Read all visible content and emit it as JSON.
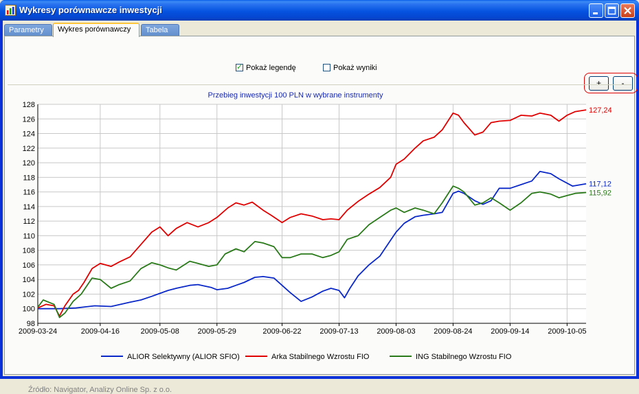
{
  "window": {
    "title": "Wykresy porównawcze inwestycji"
  },
  "tabs": [
    {
      "label": "Parametry"
    },
    {
      "label": "Wykres porównawczy"
    },
    {
      "label": "Tabela"
    }
  ],
  "options": {
    "show_legend_label": "Pokaż legendę",
    "show_legend_checked": true,
    "show_results_label": "Pokaż wyniki",
    "show_results_checked": false
  },
  "zoom": {
    "in_label": "+",
    "out_label": "-"
  },
  "source_text": "Źródło: Navigator, Analizy Online Sp. z o.o.",
  "colors": {
    "alior": "#0a28c8",
    "arka": "#e00000",
    "ing": "#2a7a1a",
    "title": "#1a2ab0"
  },
  "chart_data": {
    "type": "line",
    "title": "Przebieg inwestycji 100 PLN w wybrane instrumenty",
    "x_start": "2009-03-24",
    "x_end": "2009-10-12",
    "x_ticks": [
      "2009-03-24",
      "2009-04-16",
      "2009-05-08",
      "2009-05-29",
      "2009-06-22",
      "2009-07-13",
      "2009-08-03",
      "2009-08-24",
      "2009-09-14",
      "2009-10-05"
    ],
    "ylim": [
      98,
      128
    ],
    "y_ticks": [
      98,
      100,
      102,
      104,
      106,
      108,
      110,
      112,
      114,
      116,
      118,
      120,
      122,
      124,
      126,
      128
    ],
    "grid": true,
    "legend_position": "bottom",
    "series": [
      {
        "name": "ALIOR Selektywny (ALIOR SFIO)",
        "color": "#0a28c8",
        "end_label": "117,12",
        "points": [
          [
            "2009-03-24",
            100.0
          ],
          [
            "2009-03-27",
            100.0
          ],
          [
            "2009-04-01",
            100.0
          ],
          [
            "2009-04-07",
            100.1
          ],
          [
            "2009-04-14",
            100.4
          ],
          [
            "2009-04-20",
            100.3
          ],
          [
            "2009-04-27",
            100.9
          ],
          [
            "2009-05-01",
            101.2
          ],
          [
            "2009-05-05",
            101.7
          ],
          [
            "2009-05-08",
            102.1
          ],
          [
            "2009-05-11",
            102.5
          ],
          [
            "2009-05-14",
            102.8
          ],
          [
            "2009-05-19",
            103.2
          ],
          [
            "2009-05-22",
            103.3
          ],
          [
            "2009-05-27",
            102.9
          ],
          [
            "2009-05-29",
            102.6
          ],
          [
            "2009-06-02",
            102.8
          ],
          [
            "2009-06-05",
            103.2
          ],
          [
            "2009-06-08",
            103.6
          ],
          [
            "2009-06-12",
            104.3
          ],
          [
            "2009-06-15",
            104.4
          ],
          [
            "2009-06-19",
            104.2
          ],
          [
            "2009-06-22",
            103.2
          ],
          [
            "2009-06-25",
            102.2
          ],
          [
            "2009-06-29",
            101.0
          ],
          [
            "2009-07-03",
            101.6
          ],
          [
            "2009-07-07",
            102.4
          ],
          [
            "2009-07-10",
            102.8
          ],
          [
            "2009-07-13",
            102.5
          ],
          [
            "2009-07-15",
            101.5
          ],
          [
            "2009-07-17",
            102.8
          ],
          [
            "2009-07-20",
            104.5
          ],
          [
            "2009-07-24",
            106.0
          ],
          [
            "2009-07-28",
            107.2
          ],
          [
            "2009-08-01",
            109.4
          ],
          [
            "2009-08-03",
            110.5
          ],
          [
            "2009-08-06",
            111.7
          ],
          [
            "2009-08-10",
            112.6
          ],
          [
            "2009-08-13",
            112.8
          ],
          [
            "2009-08-17",
            113.0
          ],
          [
            "2009-08-20",
            113.2
          ],
          [
            "2009-08-24",
            115.8
          ],
          [
            "2009-08-26",
            116.1
          ],
          [
            "2009-08-28",
            115.8
          ],
          [
            "2009-09-01",
            114.8
          ],
          [
            "2009-09-04",
            114.3
          ],
          [
            "2009-09-07",
            114.8
          ],
          [
            "2009-09-10",
            116.5
          ],
          [
            "2009-09-14",
            116.5
          ],
          [
            "2009-09-18",
            117.0
          ],
          [
            "2009-09-22",
            117.5
          ],
          [
            "2009-09-25",
            118.8
          ],
          [
            "2009-09-29",
            118.5
          ],
          [
            "2009-10-02",
            117.8
          ],
          [
            "2009-10-05",
            117.2
          ],
          [
            "2009-10-07",
            116.8
          ],
          [
            "2009-10-12",
            117.12
          ]
        ]
      },
      {
        "name": "Arka Stabilnego Wzrostu FIO",
        "color": "#e00000",
        "end_label": "127,24",
        "points": [
          [
            "2009-03-24",
            100.1
          ],
          [
            "2009-03-27",
            100.6
          ],
          [
            "2009-03-30",
            100.4
          ],
          [
            "2009-04-01",
            99.0
          ],
          [
            "2009-04-03",
            100.4
          ],
          [
            "2009-04-06",
            102.0
          ],
          [
            "2009-04-08",
            102.5
          ],
          [
            "2009-04-10",
            103.6
          ],
          [
            "2009-04-13",
            105.5
          ],
          [
            "2009-04-16",
            106.2
          ],
          [
            "2009-04-20",
            105.8
          ],
          [
            "2009-04-23",
            106.4
          ],
          [
            "2009-04-27",
            107.1
          ],
          [
            "2009-05-01",
            108.8
          ],
          [
            "2009-05-05",
            110.5
          ],
          [
            "2009-05-08",
            111.2
          ],
          [
            "2009-05-11",
            110.0
          ],
          [
            "2009-05-14",
            111.0
          ],
          [
            "2009-05-18",
            111.8
          ],
          [
            "2009-05-22",
            111.2
          ],
          [
            "2009-05-26",
            111.8
          ],
          [
            "2009-05-29",
            112.5
          ],
          [
            "2009-06-02",
            113.8
          ],
          [
            "2009-06-05",
            114.5
          ],
          [
            "2009-06-08",
            114.2
          ],
          [
            "2009-06-11",
            114.6
          ],
          [
            "2009-06-15",
            113.5
          ],
          [
            "2009-06-18",
            112.8
          ],
          [
            "2009-06-22",
            111.8
          ],
          [
            "2009-06-25",
            112.5
          ],
          [
            "2009-06-29",
            113.0
          ],
          [
            "2009-07-03",
            112.7
          ],
          [
            "2009-07-07",
            112.2
          ],
          [
            "2009-07-10",
            112.3
          ],
          [
            "2009-07-13",
            112.2
          ],
          [
            "2009-07-16",
            113.5
          ],
          [
            "2009-07-20",
            114.7
          ],
          [
            "2009-07-24",
            115.7
          ],
          [
            "2009-07-28",
            116.6
          ],
          [
            "2009-08-01",
            118.0
          ],
          [
            "2009-08-03",
            119.8
          ],
          [
            "2009-08-06",
            120.5
          ],
          [
            "2009-08-10",
            122.0
          ],
          [
            "2009-08-13",
            123.0
          ],
          [
            "2009-08-17",
            123.5
          ],
          [
            "2009-08-20",
            124.5
          ],
          [
            "2009-08-24",
            126.8
          ],
          [
            "2009-08-26",
            126.5
          ],
          [
            "2009-08-28",
            125.5
          ],
          [
            "2009-09-01",
            123.8
          ],
          [
            "2009-09-04",
            124.2
          ],
          [
            "2009-09-07",
            125.5
          ],
          [
            "2009-09-10",
            125.7
          ],
          [
            "2009-09-14",
            125.8
          ],
          [
            "2009-09-18",
            126.5
          ],
          [
            "2009-09-22",
            126.4
          ],
          [
            "2009-09-25",
            126.8
          ],
          [
            "2009-09-29",
            126.5
          ],
          [
            "2009-10-02",
            125.7
          ],
          [
            "2009-10-05",
            126.5
          ],
          [
            "2009-10-08",
            127.0
          ],
          [
            "2009-10-12",
            127.24
          ]
        ]
      },
      {
        "name": "ING Stabilnego Wzrostu FIO",
        "color": "#2a7a1a",
        "end_label": "115,92",
        "points": [
          [
            "2009-03-24",
            100.2
          ],
          [
            "2009-03-26",
            101.2
          ],
          [
            "2009-03-30",
            100.6
          ],
          [
            "2009-04-01",
            98.8
          ],
          [
            "2009-04-03",
            99.4
          ],
          [
            "2009-04-06",
            101.0
          ],
          [
            "2009-04-09",
            102.0
          ],
          [
            "2009-04-13",
            104.2
          ],
          [
            "2009-04-16",
            104.0
          ],
          [
            "2009-04-20",
            102.8
          ],
          [
            "2009-04-23",
            103.3
          ],
          [
            "2009-04-27",
            103.8
          ],
          [
            "2009-05-01",
            105.5
          ],
          [
            "2009-05-05",
            106.3
          ],
          [
            "2009-05-08",
            106.0
          ],
          [
            "2009-05-11",
            105.6
          ],
          [
            "2009-05-14",
            105.3
          ],
          [
            "2009-05-19",
            106.5
          ],
          [
            "2009-05-22",
            106.2
          ],
          [
            "2009-05-26",
            105.8
          ],
          [
            "2009-05-29",
            106.0
          ],
          [
            "2009-06-01",
            107.5
          ],
          [
            "2009-06-05",
            108.2
          ],
          [
            "2009-06-08",
            107.8
          ],
          [
            "2009-06-12",
            109.2
          ],
          [
            "2009-06-15",
            109.0
          ],
          [
            "2009-06-19",
            108.5
          ],
          [
            "2009-06-22",
            107.0
          ],
          [
            "2009-06-25",
            107.0
          ],
          [
            "2009-06-29",
            107.5
          ],
          [
            "2009-07-03",
            107.5
          ],
          [
            "2009-07-07",
            107.0
          ],
          [
            "2009-07-10",
            107.3
          ],
          [
            "2009-07-13",
            107.8
          ],
          [
            "2009-07-16",
            109.5
          ],
          [
            "2009-07-20",
            110.0
          ],
          [
            "2009-07-24",
            111.5
          ],
          [
            "2009-07-28",
            112.5
          ],
          [
            "2009-08-01",
            113.5
          ],
          [
            "2009-08-03",
            113.8
          ],
          [
            "2009-08-06",
            113.2
          ],
          [
            "2009-08-10",
            113.8
          ],
          [
            "2009-08-13",
            113.5
          ],
          [
            "2009-08-17",
            113.0
          ],
          [
            "2009-08-20",
            114.5
          ],
          [
            "2009-08-24",
            116.8
          ],
          [
            "2009-08-26",
            116.5
          ],
          [
            "2009-08-28",
            116.0
          ],
          [
            "2009-09-01",
            114.2
          ],
          [
            "2009-09-04",
            114.5
          ],
          [
            "2009-09-07",
            115.2
          ],
          [
            "2009-09-10",
            114.5
          ],
          [
            "2009-09-14",
            113.5
          ],
          [
            "2009-09-18",
            114.5
          ],
          [
            "2009-09-22",
            115.8
          ],
          [
            "2009-09-25",
            116.0
          ],
          [
            "2009-09-29",
            115.7
          ],
          [
            "2009-10-02",
            115.2
          ],
          [
            "2009-10-05",
            115.5
          ],
          [
            "2009-10-08",
            115.8
          ],
          [
            "2009-10-12",
            115.92
          ]
        ]
      }
    ]
  }
}
